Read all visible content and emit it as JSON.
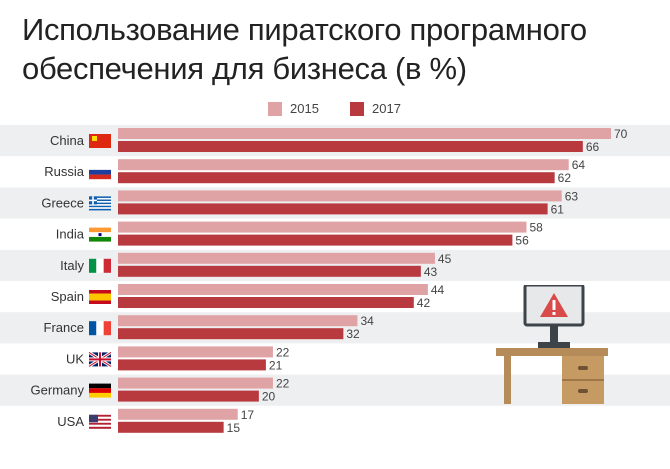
{
  "title_line1": "Использование пиратского програмного",
  "title_line2": "обеспечения для бизнеса (в %)",
  "legend": [
    {
      "label": "2015",
      "color": "#e0a3a5"
    },
    {
      "label": "2017",
      "color": "#b83a3f"
    }
  ],
  "chart_data": {
    "type": "bar",
    "orientation": "horizontal",
    "title": "Использование пиратского програмного обеспечения для бизнеса (в %)",
    "categories": [
      "China",
      "Russia",
      "Greece",
      "India",
      "Italy",
      "Spain",
      "France",
      "UK",
      "Germany",
      "USA"
    ],
    "series": [
      {
        "name": "2015",
        "color": "#e0a3a5",
        "values": [
          70,
          64,
          63,
          58,
          45,
          44,
          34,
          22,
          22,
          17
        ]
      },
      {
        "name": "2017",
        "color": "#b83a3f",
        "values": [
          66,
          62,
          61,
          56,
          43,
          42,
          32,
          21,
          20,
          15
        ]
      }
    ],
    "xlim": [
      0,
      70
    ],
    "grid": false,
    "legend_position": "top-center",
    "flags": [
      "china-flag",
      "russia-flag",
      "greece-flag",
      "india-flag",
      "italy-flag",
      "spain-flag",
      "france-flag",
      "uk-flag",
      "germany-flag",
      "usa-flag"
    ]
  },
  "illustration": {
    "name": "desk-with-warning-monitor-icon"
  }
}
